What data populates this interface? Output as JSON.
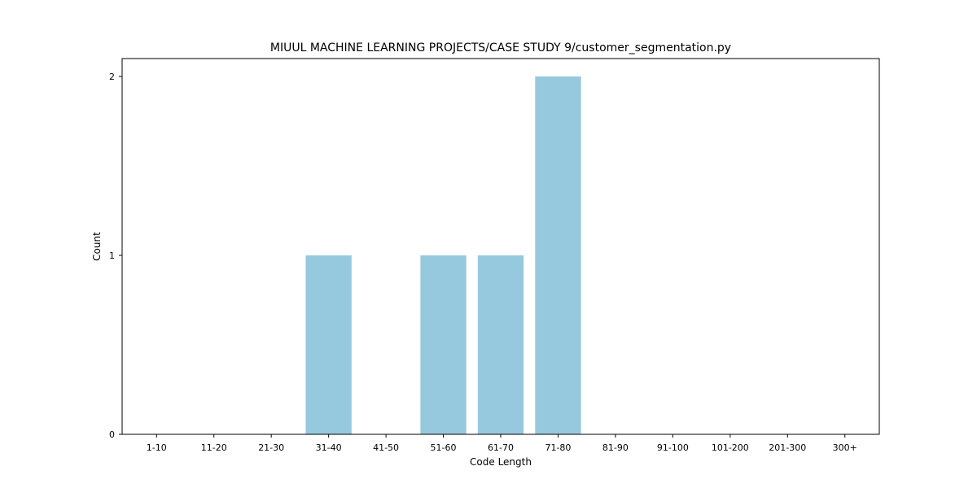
{
  "chart_data": {
    "type": "bar",
    "title": "MIUUL MACHINE LEARNING PROJECTS/CASE STUDY 9/customer_segmentation.py",
    "xlabel": "Code Length",
    "ylabel": "Count",
    "categories": [
      "1-10",
      "11-20",
      "21-30",
      "31-40",
      "41-50",
      "51-60",
      "61-70",
      "71-80",
      "81-90",
      "91-100",
      "101-200",
      "201-300",
      "300+"
    ],
    "values": [
      0,
      0,
      0,
      1,
      0,
      1,
      1,
      2,
      0,
      0,
      0,
      0,
      0
    ],
    "ylim": [
      0,
      2.1
    ],
    "yticks": [
      "0",
      "1",
      "2"
    ],
    "bar_color": "#96c9de",
    "grid": false
  }
}
